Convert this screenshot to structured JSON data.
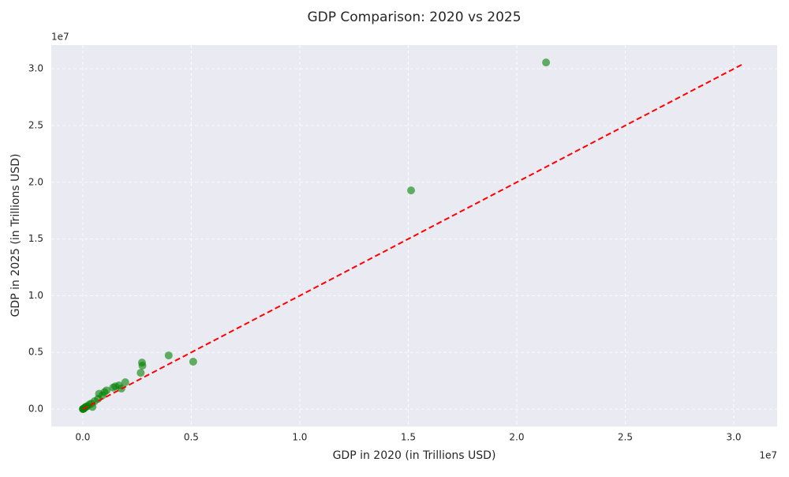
{
  "chart_data": {
    "type": "scatter",
    "title": "GDP Comparison: 2020 vs 2025",
    "x_label": "GDP in 2020 (in Trillions USD)",
    "y_label": "GDP in 2025 (in Trillions USD)",
    "x_offset_label": "1e7",
    "y_offset_label": "1e7",
    "xlim": [
      -1450000,
      32000000
    ],
    "ylim": [
      -1530000,
      32100000
    ],
    "xticks": [
      {
        "value": 0,
        "label": "0.0"
      },
      {
        "value": 5000000,
        "label": "0.5"
      },
      {
        "value": 10000000,
        "label": "1.0"
      },
      {
        "value": 15000000,
        "label": "1.5"
      },
      {
        "value": 20000000,
        "label": "2.0"
      },
      {
        "value": 25000000,
        "label": "2.5"
      },
      {
        "value": 30000000,
        "label": "3.0"
      }
    ],
    "yticks": [
      {
        "value": 0,
        "label": "0.0"
      },
      {
        "value": 5000000,
        "label": "0.5"
      },
      {
        "value": 10000000,
        "label": "1.0"
      },
      {
        "value": 15000000,
        "label": "1.5"
      },
      {
        "value": 20000000,
        "label": "2.0"
      },
      {
        "value": 25000000,
        "label": "2.5"
      },
      {
        "value": 30000000,
        "label": "3.0"
      }
    ],
    "grid": true,
    "color": "#008000",
    "x": [
      21350000,
      15130000,
      3960000,
      5090000,
      2730000,
      2750000,
      2670000,
      1960000,
      1780000,
      1670000,
      1500000,
      1400000,
      1100000,
      1000000,
      900000,
      750000,
      700000,
      550000,
      450000,
      400000,
      300000,
      200000,
      150000,
      100000,
      60000,
      30000,
      10000,
      5000
    ],
    "y": [
      30560000,
      19280000,
      4730000,
      4180000,
      4100000,
      3830000,
      3200000,
      2370000,
      1810000,
      2090000,
      2000000,
      1900000,
      1650000,
      1500000,
      1200000,
      1350000,
      900000,
      700000,
      200000,
      500000,
      400000,
      250000,
      200000,
      150000,
      60000,
      30000,
      10000,
      5000
    ],
    "reference_line": {
      "color": "#ff0000",
      "x": [
        0,
        30440000
      ],
      "y": [
        0,
        30440000
      ]
    }
  }
}
